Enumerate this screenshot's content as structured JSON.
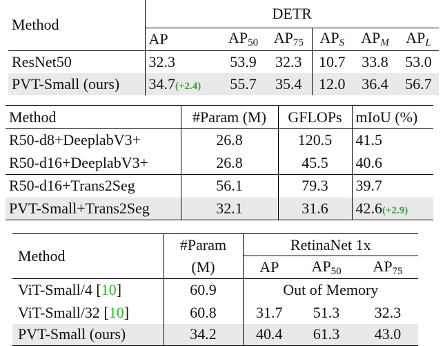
{
  "tables": [
    {
      "header": {
        "method": "Method",
        "group": "DETR",
        "columns": [
          {
            "base": "AP"
          },
          {
            "base": "AP",
            "sub": "50"
          },
          {
            "base": "AP",
            "sub": "75"
          },
          {
            "base": "AP",
            "sub": "S"
          },
          {
            "base": "AP",
            "sub": "M"
          },
          {
            "base": "AP",
            "sub": "L"
          }
        ]
      },
      "rows": [
        {
          "cells": [
            "ResNet50",
            "32.3",
            "53.9",
            "32.3",
            "10.7",
            "33.8",
            "53.0"
          ]
        },
        {
          "cells": [
            "PVT-Small (ours)",
            "34.7",
            "55.7",
            "35.4",
            "12.0",
            "36.4",
            "56.7"
          ],
          "gain": "(+2.4)"
        }
      ]
    },
    {
      "header": [
        "Method",
        "#Param (M)",
        "GFLOPs",
        "mIoU (%)"
      ],
      "rows": [
        {
          "cells": [
            "R50-d8+DeeplabV3+",
            "26.8",
            "120.5",
            "41.5"
          ]
        },
        {
          "cells": [
            "R50-d16+DeeplabV3+",
            "26.8",
            "45.5",
            "40.6"
          ]
        },
        {
          "cells": [
            "R50-d16+Trans2Seg",
            "56.1",
            "79.3",
            "39.7"
          ]
        },
        {
          "cells": [
            "PVT-Small+Trans2Seg",
            "32.1",
            "31.6",
            "42.6"
          ],
          "gain": "(+2.9)"
        }
      ]
    },
    {
      "header": {
        "method": "Method",
        "param": [
          "#Param",
          "(M)"
        ],
        "group": "RetinaNet 1x",
        "columns": [
          {
            "base": "AP"
          },
          {
            "base": "AP",
            "sub": "50"
          },
          {
            "base": "AP",
            "sub": "75"
          }
        ]
      },
      "rows": [
        {
          "method": [
            "ViT-Small/4 [",
            "10",
            "]"
          ],
          "param": "60.9",
          "results": [
            "Out of Memory"
          ]
        },
        {
          "method": [
            "ViT-Small/32 [",
            "10",
            "]"
          ],
          "param": "60.8",
          "results": [
            "31.7",
            "51.3",
            "32.3"
          ]
        },
        {
          "method": [
            "PVT-Small (ours)"
          ],
          "param": "34.2",
          "results": [
            "40.4",
            "61.3",
            "43.0"
          ]
        }
      ]
    }
  ]
}
